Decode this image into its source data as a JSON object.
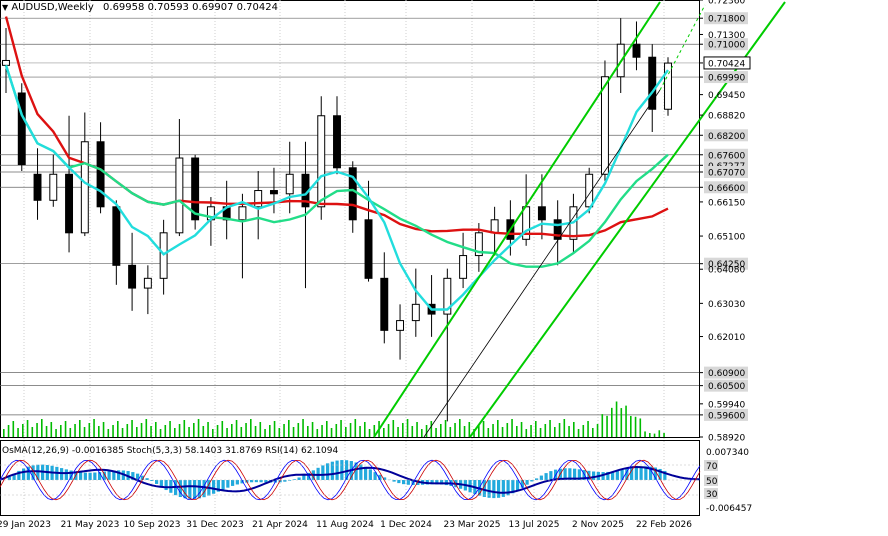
{
  "header": {
    "symbol": "AUDUSD,Weekly",
    "ohlc": "0.69958 0.70593 0.69907 0.70424"
  },
  "oscillator_header": "OsMA(12,26,9) -0.0016385  Stoch(5,3,3) 58.1403 31.8769  RSI(14) 62.1094",
  "colors": {
    "candle": "#000000",
    "ma_red": "#dd1111",
    "ma_green": "#22dd88",
    "ma_cyan": "#22dddd",
    "channel": "#00cc00",
    "midline": "#000000",
    "level_line": "#666666",
    "hist": "#22aadd",
    "rsi_blue": "#000099",
    "stoch_main": "#0000ff",
    "stoch_signal": "#cc0000"
  },
  "chart_data": {
    "type": "candlestick",
    "symbol": "AUDUSD",
    "timeframe": "Weekly",
    "ylim": [
      0.5892,
      0.7236
    ],
    "price_ticks": [
      "0.72360",
      "0.71800",
      "0.71300",
      "0.71000",
      "0.70424",
      "0.69990",
      "0.69450",
      "0.68820",
      "0.68200",
      "0.67600",
      "0.67277",
      "0.67070",
      "0.66600",
      "0.66150",
      "0.65100",
      "0.64250",
      "0.64080",
      "0.63030",
      "0.62010",
      "0.60900",
      "0.60500",
      "0.59940",
      "0.59600",
      "0.58920"
    ],
    "highlighted_levels": [
      "0.71800",
      "0.71000",
      "0.70424",
      "0.69990",
      "0.68200",
      "0.67600",
      "0.67277",
      "0.67070",
      "0.66600",
      "0.64250",
      "0.60900",
      "0.60500",
      "0.59600"
    ],
    "current_price": "0.70424",
    "x_tick_labels": [
      "29 Jan 2023",
      "21 May 2023",
      "10 Sep 2023",
      "31 Dec 2023",
      "21 Apr 2024",
      "11 Aug 2024",
      "1 Dec 2024",
      "23 Mar 2025",
      "13 Jul 2025",
      "2 Nov 2025",
      "22 Feb 2026"
    ],
    "oscillator_ticks": [
      "0.007340",
      "70",
      "50",
      "30",
      "-0.006457"
    ],
    "candles": [
      {
        "week": "2023-01-29",
        "o": 0.7035,
        "h": 0.715,
        "l": 0.695,
        "c": 0.705
      },
      {
        "week": "2023-02-26",
        "o": 0.695,
        "h": 0.698,
        "l": 0.671,
        "c": 0.673
      },
      {
        "week": "2023-03-26",
        "o": 0.67,
        "h": 0.678,
        "l": 0.656,
        "c": 0.662
      },
      {
        "week": "2023-04-23",
        "o": 0.662,
        "h": 0.676,
        "l": 0.66,
        "c": 0.67
      },
      {
        "week": "2023-05-21",
        "o": 0.67,
        "h": 0.688,
        "l": 0.646,
        "c": 0.652
      },
      {
        "week": "2023-06-18",
        "o": 0.652,
        "h": 0.689,
        "l": 0.651,
        "c": 0.68
      },
      {
        "week": "2023-07-16",
        "o": 0.68,
        "h": 0.686,
        "l": 0.658,
        "c": 0.66
      },
      {
        "week": "2023-08-13",
        "o": 0.66,
        "h": 0.662,
        "l": 0.636,
        "c": 0.642
      },
      {
        "week": "2023-09-10",
        "o": 0.642,
        "h": 0.652,
        "l": 0.628,
        "c": 0.635
      },
      {
        "week": "2023-10-08",
        "o": 0.635,
        "h": 0.642,
        "l": 0.627,
        "c": 0.638
      },
      {
        "week": "2023-11-05",
        "o": 0.638,
        "h": 0.656,
        "l": 0.633,
        "c": 0.652
      },
      {
        "week": "2023-12-03",
        "o": 0.652,
        "h": 0.687,
        "l": 0.651,
        "c": 0.675
      },
      {
        "week": "2023-12-31",
        "o": 0.675,
        "h": 0.676,
        "l": 0.653,
        "c": 0.656
      },
      {
        "week": "2024-01-28",
        "o": 0.656,
        "h": 0.663,
        "l": 0.648,
        "c": 0.66
      },
      {
        "week": "2024-02-25",
        "o": 0.66,
        "h": 0.668,
        "l": 0.65,
        "c": 0.656
      },
      {
        "week": "2024-03-24",
        "o": 0.656,
        "h": 0.664,
        "l": 0.638,
        "c": 0.66
      },
      {
        "week": "2024-04-21",
        "o": 0.66,
        "h": 0.671,
        "l": 0.65,
        "c": 0.665
      },
      {
        "week": "2024-05-19",
        "o": 0.665,
        "h": 0.672,
        "l": 0.658,
        "c": 0.664
      },
      {
        "week": "2024-06-16",
        "o": 0.664,
        "h": 0.68,
        "l": 0.658,
        "c": 0.67
      },
      {
        "week": "2024-07-14",
        "o": 0.67,
        "h": 0.68,
        "l": 0.635,
        "c": 0.66
      },
      {
        "week": "2024-08-11",
        "o": 0.66,
        "h": 0.694,
        "l": 0.656,
        "c": 0.688
      },
      {
        "week": "2024-09-08",
        "o": 0.688,
        "h": 0.694,
        "l": 0.67,
        "c": 0.672
      },
      {
        "week": "2024-10-06",
        "o": 0.672,
        "h": 0.674,
        "l": 0.652,
        "c": 0.656
      },
      {
        "week": "2024-11-03",
        "o": 0.656,
        "h": 0.668,
        "l": 0.637,
        "c": 0.638
      },
      {
        "week": "2024-12-01",
        "o": 0.638,
        "h": 0.646,
        "l": 0.618,
        "c": 0.622
      },
      {
        "week": "2024-12-29",
        "o": 0.622,
        "h": 0.63,
        "l": 0.613,
        "c": 0.625
      },
      {
        "week": "2025-01-26",
        "o": 0.625,
        "h": 0.641,
        "l": 0.62,
        "c": 0.63
      },
      {
        "week": "2025-02-23",
        "o": 0.63,
        "h": 0.639,
        "l": 0.62,
        "c": 0.627
      },
      {
        "week": "2025-03-23",
        "o": 0.627,
        "h": 0.641,
        "l": 0.594,
        "c": 0.638
      },
      {
        "week": "2025-04-20",
        "o": 0.638,
        "h": 0.652,
        "l": 0.635,
        "c": 0.645
      },
      {
        "week": "2025-05-18",
        "o": 0.645,
        "h": 0.655,
        "l": 0.64,
        "c": 0.652
      },
      {
        "week": "2025-06-15",
        "o": 0.652,
        "h": 0.66,
        "l": 0.645,
        "c": 0.656
      },
      {
        "week": "2025-07-13",
        "o": 0.656,
        "h": 0.662,
        "l": 0.645,
        "c": 0.65
      },
      {
        "week": "2025-08-10",
        "o": 0.65,
        "h": 0.67,
        "l": 0.648,
        "c": 0.66
      },
      {
        "week": "2025-09-07",
        "o": 0.66,
        "h": 0.67,
        "l": 0.65,
        "c": 0.656
      },
      {
        "week": "2025-10-05",
        "o": 0.656,
        "h": 0.662,
        "l": 0.642,
        "c": 0.65
      },
      {
        "week": "2025-11-02",
        "o": 0.65,
        "h": 0.664,
        "l": 0.646,
        "c": 0.66
      },
      {
        "week": "2025-11-30",
        "o": 0.66,
        "h": 0.672,
        "l": 0.658,
        "c": 0.67
      },
      {
        "week": "2025-12-28",
        "o": 0.67,
        "h": 0.705,
        "l": 0.668,
        "c": 0.7
      },
      {
        "week": "2026-01-25",
        "o": 0.7,
        "h": 0.718,
        "l": 0.695,
        "c": 0.71
      },
      {
        "week": "2026-02-08",
        "o": 0.71,
        "h": 0.717,
        "l": 0.702,
        "c": 0.706
      },
      {
        "week": "2026-02-22",
        "o": 0.706,
        "h": 0.71,
        "l": 0.683,
        "c": 0.69
      },
      {
        "week": "2026-03-08",
        "o": 0.69,
        "h": 0.706,
        "l": 0.688,
        "c": 0.7042
      }
    ]
  }
}
